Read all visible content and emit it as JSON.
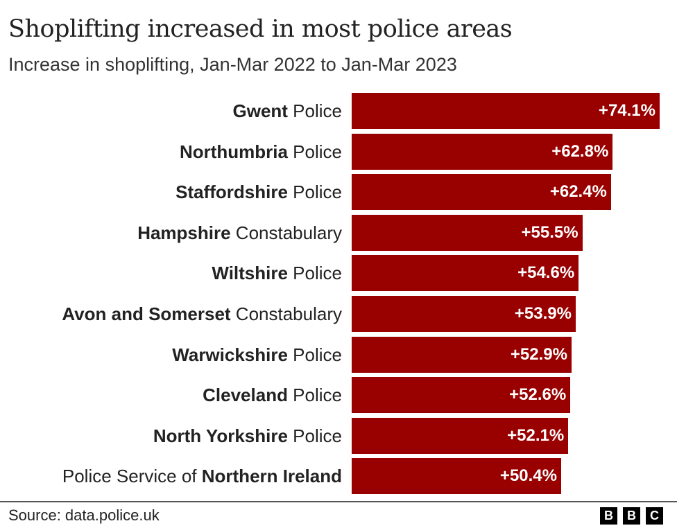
{
  "chart_data": {
    "type": "bar",
    "orientation": "horizontal",
    "title": "Shoplifting increased in most police areas",
    "subtitle": "Increase in shoplifting, Jan-Mar 2022 to Jan-Mar 2023",
    "categories": [
      {
        "bold": "Gwent",
        "rest": " Police",
        "prefix": ""
      },
      {
        "bold": "Northumbria",
        "rest": " Police",
        "prefix": ""
      },
      {
        "bold": "Staffordshire",
        "rest": " Police",
        "prefix": ""
      },
      {
        "bold": "Hampshire",
        "rest": " Constabulary",
        "prefix": ""
      },
      {
        "bold": "Wiltshire",
        "rest": " Police",
        "prefix": ""
      },
      {
        "bold": "Avon and Somerset",
        "rest": " Constabulary",
        "prefix": ""
      },
      {
        "bold": "Warwickshire",
        "rest": " Police",
        "prefix": ""
      },
      {
        "bold": "Cleveland",
        "rest": " Police",
        "prefix": ""
      },
      {
        "bold": "North Yorkshire",
        "rest": " Police",
        "prefix": ""
      },
      {
        "bold": "Northern Ireland",
        "rest": "",
        "prefix": "Police Service of "
      }
    ],
    "values": [
      74.1,
      62.8,
      62.4,
      55.5,
      54.6,
      53.9,
      52.9,
      52.6,
      52.1,
      50.4
    ],
    "data_labels": [
      "+74.1%",
      "+62.8%",
      "+62.4%",
      "+55.5%",
      "+54.6%",
      "+53.9%",
      "+52.9%",
      "+52.6%",
      "+52.1%",
      "+50.4%"
    ],
    "xlim": [
      0,
      74.1
    ],
    "grid": false,
    "bar_color": "#990000"
  },
  "footer": {
    "source": "Source: data.police.uk",
    "logo": [
      "B",
      "B",
      "C"
    ]
  }
}
